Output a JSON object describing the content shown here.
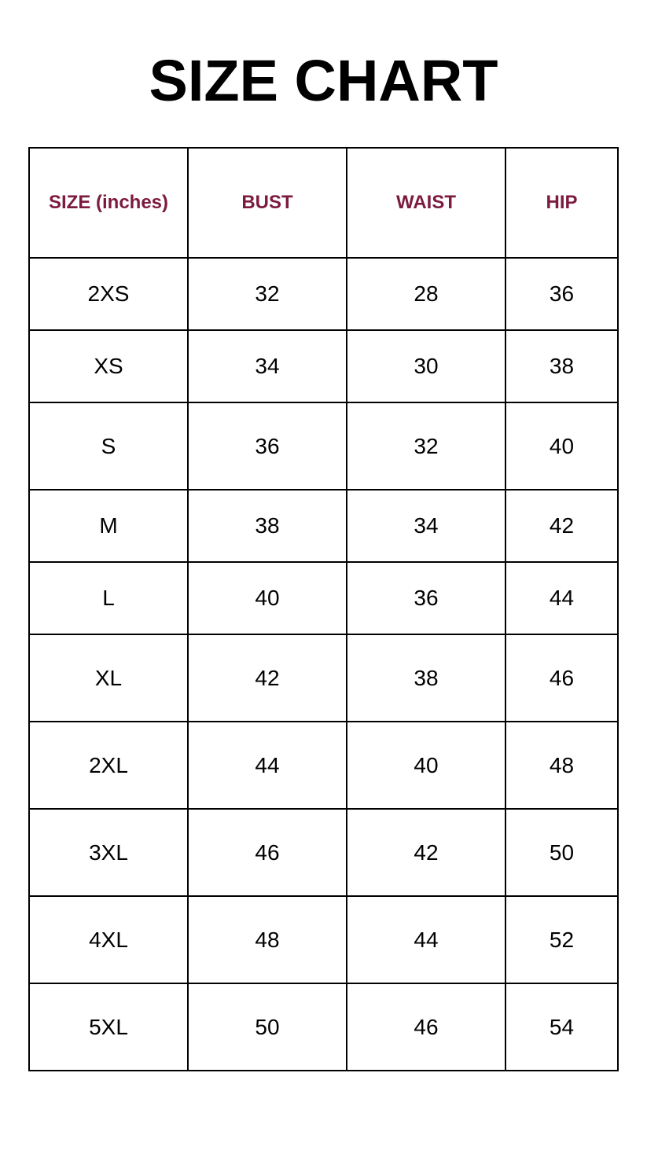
{
  "title": "SIZE CHART",
  "header_color": "#7d1a3f",
  "columns": [
    "SIZE (inches)",
    "BUST",
    "WAIST",
    "HIP"
  ],
  "rows": [
    [
      "2XS",
      "32",
      "28",
      "36"
    ],
    [
      "XS",
      "34",
      "30",
      "38"
    ],
    [
      "S",
      "36",
      "32",
      "40"
    ],
    [
      "M",
      "38",
      "34",
      "42"
    ],
    [
      "L",
      "40",
      "36",
      "44"
    ],
    [
      "XL",
      "42",
      "38",
      "46"
    ],
    [
      "2XL",
      "44",
      "40",
      "48"
    ],
    [
      "3XL",
      "46",
      "42",
      "50"
    ],
    [
      "4XL",
      "48",
      "44",
      "52"
    ],
    [
      "5XL",
      "50",
      "46",
      "54"
    ]
  ]
}
